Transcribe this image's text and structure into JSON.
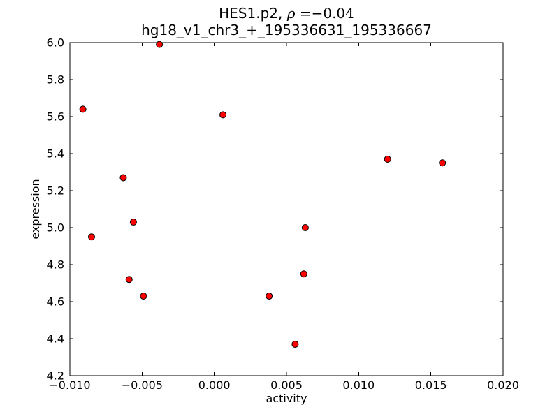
{
  "title": {
    "line1_prefix": "HES1.p2, ",
    "line1_rho": "ρ",
    "line1_math_rest": " =−0.04",
    "line2": "hg18_v1_chr3_+_195336631_195336667"
  },
  "chart_data": {
    "type": "scatter",
    "title": "HES1.p2, ρ =−0.04",
    "subtitle": "hg18_v1_chr3_+_195336631_195336667",
    "xlabel": "activity",
    "ylabel": "expression",
    "xlim": [
      -0.01,
      0.02
    ],
    "ylim": [
      4.2,
      6.0
    ],
    "grid": false,
    "legend": "none",
    "frame_color": "#000000",
    "background_color": "#ffffff",
    "x_ticks": {
      "values": [
        -0.01,
        -0.005,
        0.0,
        0.005,
        0.01,
        0.015,
        0.02
      ],
      "labels": [
        "−0.010",
        "−0.005",
        "0.000",
        "0.005",
        "0.010",
        "0.015",
        "0.020"
      ]
    },
    "y_ticks": {
      "values": [
        4.2,
        4.4,
        4.6,
        4.8,
        5.0,
        5.2,
        5.4,
        5.6,
        5.8,
        6.0
      ],
      "labels": [
        "4.2",
        "4.4",
        "4.6",
        "4.8",
        "5.0",
        "5.2",
        "5.4",
        "5.6",
        "5.8",
        "6.0"
      ]
    },
    "marker": {
      "shape": "circle",
      "fill": "#ff0000",
      "edge": "#000000",
      "radius_px": 4.5
    },
    "points": [
      {
        "x": -0.0091,
        "y": 5.64
      },
      {
        "x": -0.0085,
        "y": 4.95
      },
      {
        "x": -0.0063,
        "y": 5.27
      },
      {
        "x": -0.0059,
        "y": 4.72
      },
      {
        "x": -0.0056,
        "y": 5.03
      },
      {
        "x": -0.0049,
        "y": 4.63
      },
      {
        "x": -0.0038,
        "y": 5.99
      },
      {
        "x": 0.0006,
        "y": 5.61
      },
      {
        "x": 0.0038,
        "y": 4.63
      },
      {
        "x": 0.0056,
        "y": 4.37
      },
      {
        "x": 0.0062,
        "y": 4.75
      },
      {
        "x": 0.0063,
        "y": 5.0
      },
      {
        "x": 0.012,
        "y": 5.37
      },
      {
        "x": 0.0158,
        "y": 5.35
      }
    ]
  }
}
